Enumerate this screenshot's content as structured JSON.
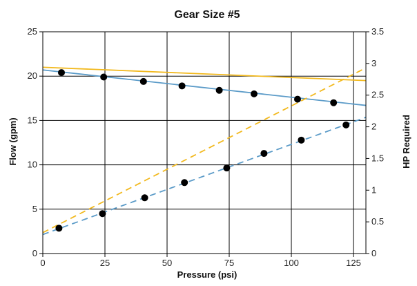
{
  "chart_data": {
    "type": "scatter",
    "title": "Gear Size #5",
    "xlabel": "Pressure (psi)",
    "ylabel": "Flow (gpm)",
    "y2label": "HP Required",
    "xlim": [
      0,
      130
    ],
    "ylim": [
      0,
      25
    ],
    "y2lim": [
      0,
      3.5
    ],
    "xticks": [
      0,
      25,
      50,
      75,
      100,
      125
    ],
    "yticks": [
      0,
      5,
      10,
      15,
      20,
      25
    ],
    "y2ticks": [
      0,
      0.5,
      1,
      1.5,
      2,
      2.5,
      3,
      3.5
    ],
    "grid": true,
    "colors": {
      "blue": "#5B9BC8",
      "yellow": "#F2B91E",
      "points": "#000000",
      "grid": "#000000"
    },
    "series": [
      {
        "axis": "left",
        "style": "markers",
        "x": [
          7.5,
          24.5,
          40.5,
          56,
          71,
          85,
          102.5,
          117
        ],
        "y": [
          20.4,
          19.9,
          19.4,
          18.9,
          18.4,
          18.0,
          17.4,
          17.0
        ]
      },
      {
        "axis": "right",
        "style": "markers",
        "x": [
          6.5,
          24,
          41,
          57,
          74,
          89,
          104,
          122
        ],
        "y": [
          0.4,
          0.63,
          0.88,
          1.12,
          1.35,
          1.58,
          1.79,
          2.03
        ]
      },
      {
        "axis": "left",
        "style": "solid",
        "color": "#5B9BC8",
        "x": [
          0,
          130
        ],
        "y": [
          20.7,
          16.7
        ]
      },
      {
        "axis": "left",
        "style": "solid",
        "color": "#F2B91E",
        "x": [
          0,
          130
        ],
        "y": [
          21.0,
          19.5
        ]
      },
      {
        "axis": "right",
        "style": "dashed",
        "color": "#5B9BC8",
        "x": [
          0,
          130
        ],
        "y": [
          0.3,
          2.15
        ]
      },
      {
        "axis": "right",
        "style": "dashed",
        "color": "#F2B91E",
        "x": [
          0,
          130
        ],
        "y": [
          0.33,
          2.93
        ]
      }
    ]
  }
}
